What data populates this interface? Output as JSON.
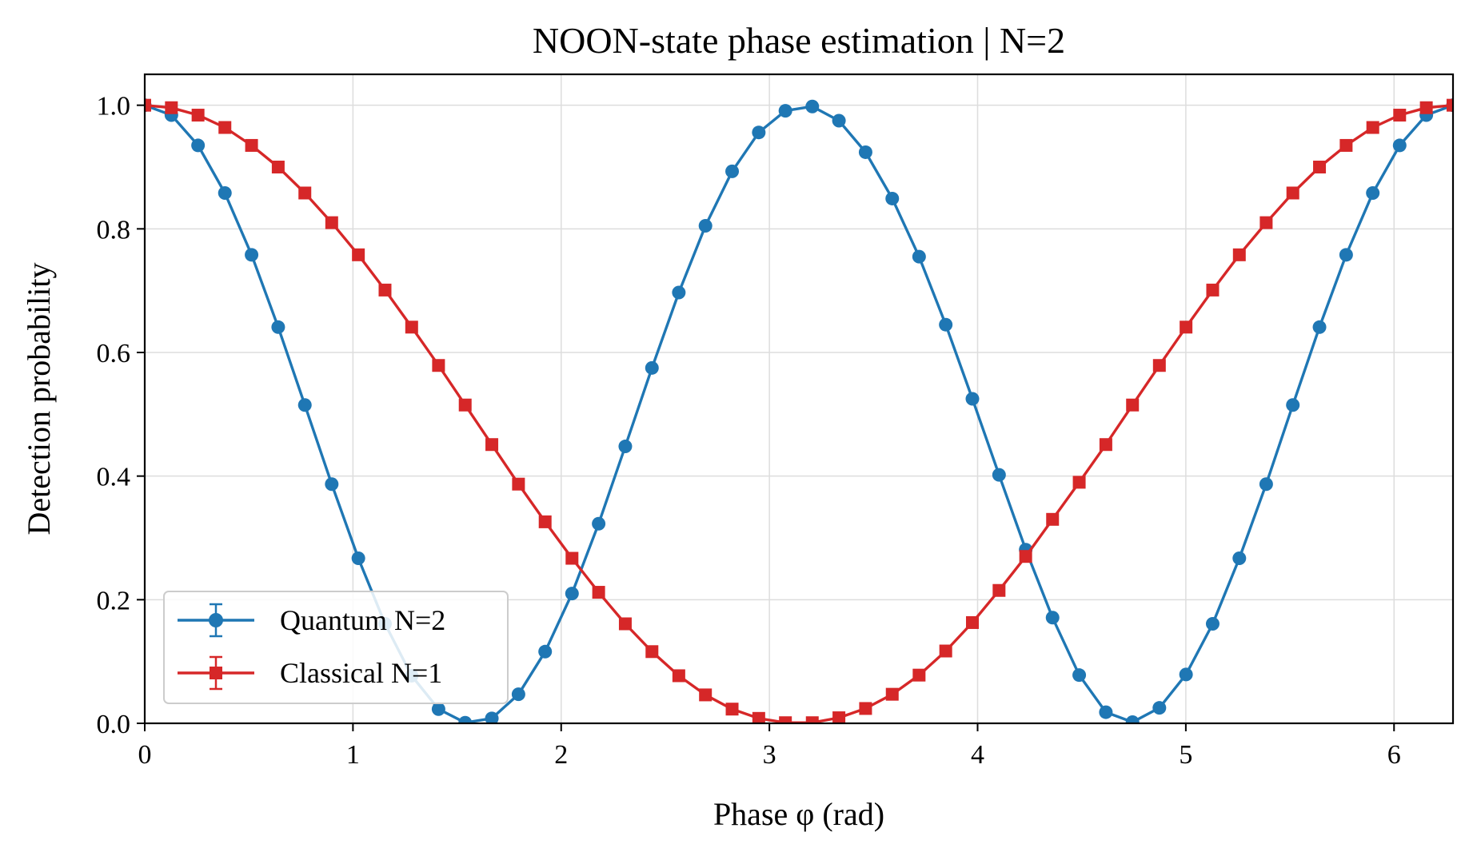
{
  "chart_data": {
    "type": "line",
    "title": "NOON-state phase estimation | N=2",
    "xlabel": "Phase φ (rad)",
    "ylabel": "Detection probability",
    "xlim": [
      0,
      6.2832
    ],
    "ylim": [
      0,
      1.05
    ],
    "xticks": [
      "0",
      "1",
      "2",
      "3",
      "4",
      "5",
      "6"
    ],
    "yticks": [
      "0.0",
      "0.2",
      "0.4",
      "0.6",
      "0.8",
      "1.0"
    ],
    "grid": true,
    "legend_position": "lower-left",
    "x": [
      0.0,
      0.128,
      0.256,
      0.385,
      0.513,
      0.641,
      0.769,
      0.898,
      1.026,
      1.154,
      1.282,
      1.411,
      1.539,
      1.667,
      1.795,
      1.923,
      2.052,
      2.18,
      2.308,
      2.436,
      2.565,
      2.693,
      2.821,
      2.949,
      3.077,
      3.206,
      3.334,
      3.462,
      3.59,
      3.719,
      3.847,
      3.975,
      4.103,
      4.231,
      4.36,
      4.488,
      4.616,
      4.744,
      4.873,
      5.001,
      5.129,
      5.257,
      5.386,
      5.514,
      5.642,
      5.77,
      5.898,
      6.027,
      6.155,
      6.283
    ],
    "series": [
      {
        "name": "Quantum N=2",
        "color": "#1f77b4",
        "marker": "circle",
        "values": [
          1.0,
          0.984,
          0.935,
          0.858,
          0.758,
          0.641,
          0.515,
          0.387,
          0.267,
          0.161,
          0.077,
          0.023,
          0.001,
          0.008,
          0.047,
          0.116,
          0.21,
          0.323,
          0.448,
          0.575,
          0.697,
          0.805,
          0.893,
          0.956,
          0.991,
          0.998,
          0.975,
          0.924,
          0.849,
          0.755,
          0.645,
          0.525,
          0.402,
          0.281,
          0.171,
          0.078,
          0.018,
          0.002,
          0.025,
          0.079,
          0.161,
          0.267,
          0.387,
          0.515,
          0.641,
          0.758,
          0.858,
          0.935,
          0.984,
          1.0
        ]
      },
      {
        "name": "Classical N=1",
        "color": "#d62728",
        "marker": "square",
        "values": [
          1.0,
          0.996,
          0.984,
          0.964,
          0.935,
          0.9,
          0.858,
          0.81,
          0.758,
          0.701,
          0.641,
          0.579,
          0.515,
          0.451,
          0.387,
          0.326,
          0.267,
          0.212,
          0.161,
          0.116,
          0.077,
          0.046,
          0.023,
          0.008,
          0.001,
          0.001,
          0.009,
          0.024,
          0.047,
          0.078,
          0.117,
          0.163,
          0.215,
          0.27,
          0.33,
          0.39,
          0.451,
          0.515,
          0.579,
          0.641,
          0.701,
          0.758,
          0.81,
          0.858,
          0.9,
          0.935,
          0.964,
          0.984,
          0.996,
          1.0
        ]
      }
    ]
  }
}
